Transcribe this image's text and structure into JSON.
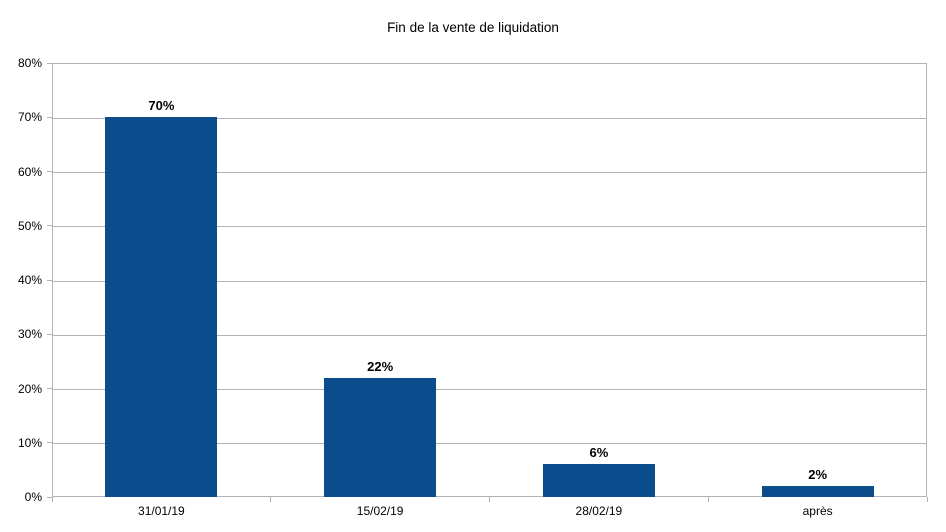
{
  "chart_data": {
    "type": "bar",
    "title": "Fin de la vente de liquidation",
    "categories": [
      "31/01/19",
      "15/02/19",
      "28/02/19",
      "après"
    ],
    "values": [
      70,
      22,
      6,
      2
    ],
    "data_labels": [
      "70%",
      "22%",
      "6%",
      "2%"
    ],
    "xlabel": "",
    "ylabel": "",
    "ylim": [
      0,
      80
    ],
    "y_tick_step": 10,
    "y_tick_labels": [
      "0%",
      "10%",
      "20%",
      "30%",
      "40%",
      "50%",
      "60%",
      "70%",
      "80%"
    ],
    "grid": "horizontal",
    "legend_position": "none",
    "bar_color": "#0b4d8c",
    "gridline_color": "#b3b3b3",
    "axis_color": "#b3b3b3",
    "text_color": "#000000"
  }
}
